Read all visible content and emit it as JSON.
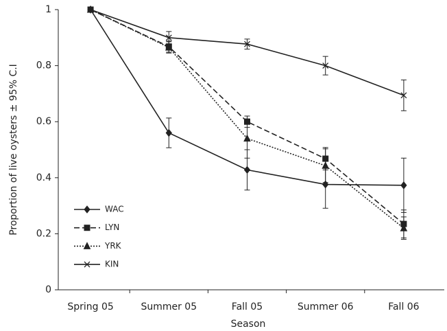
{
  "chart_data": {
    "type": "line",
    "x_label": "Season",
    "y_label": "Proportion of live oysters ± 95% C.I",
    "categories": [
      "Spring 05",
      "Summer 05",
      "Fall 05",
      "Summer 06",
      "Fall 06"
    ],
    "ylim": [
      0,
      1
    ],
    "yticks": [
      0,
      0.2,
      0.4,
      0.6,
      0.8,
      1
    ],
    "grid": false,
    "legend": "lower left",
    "series": [
      {
        "name": "WAC",
        "color": "#222222",
        "dash": "solid",
        "marker": "diamond",
        "values": [
          1,
          0.56,
          0.428,
          0.376,
          0.373
        ],
        "errors": [
          0,
          0.053,
          0.072,
          0.085,
          0.097
        ]
      },
      {
        "name": "LYN",
        "color": "#222222",
        "dash": "dashed",
        "marker": "square",
        "values": [
          1,
          0.868,
          0.6,
          0.468,
          0.235
        ],
        "errors": [
          0,
          0.02,
          0.02,
          0.04,
          0.05
        ]
      },
      {
        "name": "YRK",
        "color": "#222222",
        "dash": "dotted",
        "marker": "triangle",
        "values": [
          1,
          0.865,
          0.54,
          0.443,
          0.22
        ],
        "errors": [
          0,
          0.02,
          0.07,
          0.06,
          0.04
        ]
      },
      {
        "name": "KIN",
        "color": "#222222",
        "dash": "solid",
        "marker": "x",
        "values": [
          1,
          0.9,
          0.877,
          0.8,
          0.694
        ],
        "errors": [
          0,
          0.022,
          0.018,
          0.033,
          0.055
        ]
      }
    ]
  }
}
